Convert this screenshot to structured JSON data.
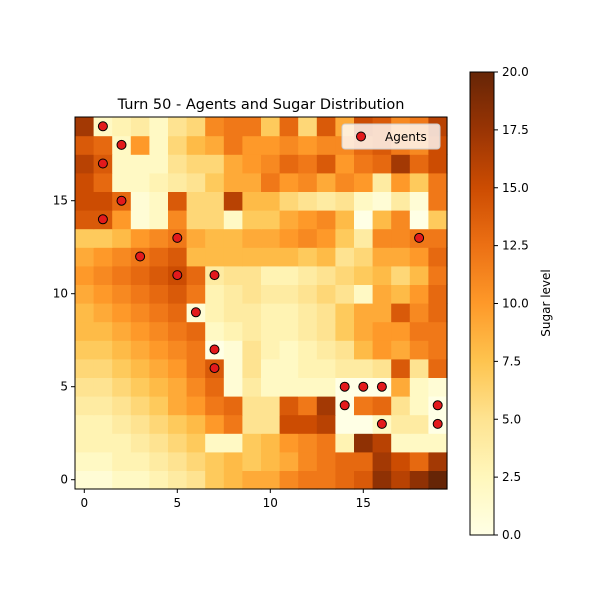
{
  "chart_data": {
    "type": "heatmap",
    "title": "Turn 50 - Agents and Sugar Distribution",
    "xlabel": "",
    "ylabel": "",
    "xlim": [
      -0.5,
      19.5
    ],
    "ylim": [
      -0.5,
      19.5
    ],
    "x_ticks": [
      0,
      5,
      10,
      15
    ],
    "y_ticks": [
      0,
      5,
      10,
      15
    ],
    "colormap": "YlOrBr",
    "colorbar": {
      "label": "Sugar level",
      "min": 0.0,
      "max": 20.0,
      "ticks": [
        "0.0",
        "2.5",
        "5.0",
        "7.5",
        "10.0",
        "12.5",
        "15.0",
        "17.5",
        "20.0"
      ]
    },
    "legend": {
      "position": "top-right",
      "entries": [
        "Agents"
      ]
    },
    "agent_color": "#e31a1c",
    "grid": [
      [
        1,
        1,
        2,
        2,
        3,
        4,
        5,
        7,
        8,
        9,
        9,
        11,
        12,
        12,
        13,
        14,
        18,
        16,
        18,
        20
      ],
      [
        2,
        2,
        3,
        3,
        4,
        5,
        6,
        7,
        8,
        7,
        8,
        9,
        11,
        12,
        13,
        13,
        17,
        15,
        13,
        17
      ],
      [
        3,
        3,
        3,
        4,
        5,
        6,
        7,
        2,
        2,
        7,
        8,
        10,
        11,
        12,
        3,
        18,
        16,
        2,
        2,
        2
      ],
      [
        3,
        3,
        4,
        5,
        6,
        7,
        8,
        10,
        12,
        5,
        5,
        15,
        15,
        16,
        0,
        0,
        2,
        4,
        4,
        0
      ],
      [
        4,
        4,
        5,
        6,
        7,
        9,
        10,
        12,
        13,
        5,
        5,
        14,
        12,
        17,
        0,
        12,
        13,
        5,
        2,
        0
      ],
      [
        5,
        5,
        6,
        7,
        8,
        9,
        11,
        13,
        1,
        4,
        2,
        2,
        2,
        2,
        0,
        0,
        0,
        9,
        2,
        1
      ],
      [
        6,
        6,
        7,
        8,
        9,
        10,
        12,
        14,
        1,
        5,
        2,
        2,
        3,
        3,
        4,
        4,
        5,
        14,
        5,
        13
      ],
      [
        7,
        7,
        8,
        9,
        10,
        11,
        12,
        0,
        1,
        5,
        3,
        2,
        3,
        4,
        5,
        8,
        10,
        9,
        11,
        12
      ],
      [
        8,
        8,
        9,
        10,
        11,
        12,
        13,
        2,
        3,
        4,
        3,
        3,
        4,
        5,
        7,
        9,
        10,
        10,
        12,
        12
      ],
      [
        8,
        9,
        10,
        11,
        12,
        13,
        1,
        3,
        4,
        4,
        3,
        3,
        4,
        5,
        7,
        9,
        9,
        14,
        11,
        13
      ],
      [
        9,
        10,
        11,
        12,
        13,
        14,
        12,
        3,
        4,
        5,
        4,
        4,
        5,
        6,
        5,
        2,
        9,
        8,
        10,
        13
      ],
      [
        10,
        11,
        12,
        13,
        14,
        15,
        13,
        4,
        5,
        5,
        3,
        3,
        4,
        5,
        6,
        7,
        8,
        6,
        8,
        12
      ],
      [
        9,
        10,
        11,
        12,
        13,
        14,
        8,
        8,
        8,
        8,
        8,
        8,
        7,
        8,
        5,
        6,
        9,
        9,
        10,
        13
      ],
      [
        7,
        7,
        8,
        10,
        11,
        12,
        9,
        8,
        8,
        9,
        9,
        10,
        11,
        10,
        7,
        4,
        11,
        11,
        12,
        12
      ],
      [
        14,
        14,
        10,
        1,
        2,
        11,
        6,
        6,
        2,
        7,
        7,
        9,
        10,
        11,
        8,
        0,
        8,
        11,
        0,
        7
      ],
      [
        15,
        15,
        13,
        1,
        2,
        14,
        6,
        6,
        16,
        8,
        8,
        6,
        5,
        4,
        5,
        2,
        1,
        4,
        1,
        12
      ],
      [
        15,
        13,
        2,
        2,
        3,
        4,
        5,
        7,
        9,
        9,
        12,
        10,
        11,
        9,
        11,
        10,
        4,
        10,
        7,
        12
      ],
      [
        16,
        14,
        2,
        2,
        2,
        5,
        6,
        6,
        9,
        10,
        11,
        13,
        12,
        14,
        10,
        12,
        13,
        17,
        13,
        15
      ],
      [
        14,
        13,
        2,
        10,
        2,
        6,
        8,
        9,
        12,
        10,
        10,
        11,
        10,
        11,
        11,
        13,
        14,
        12,
        11,
        15
      ],
      [
        17,
        2,
        3,
        4,
        2,
        5,
        6,
        11,
        12,
        12,
        7,
        13,
        6,
        14,
        9,
        15,
        14,
        11,
        12,
        16
      ]
    ],
    "agents": [
      {
        "x": 1,
        "y": 19
      },
      {
        "x": 2,
        "y": 18
      },
      {
        "x": 1,
        "y": 17
      },
      {
        "x": 2,
        "y": 15
      },
      {
        "x": 1,
        "y": 14
      },
      {
        "x": 5,
        "y": 13
      },
      {
        "x": 3,
        "y": 12
      },
      {
        "x": 18,
        "y": 13
      },
      {
        "x": 5,
        "y": 11
      },
      {
        "x": 7,
        "y": 11
      },
      {
        "x": 6,
        "y": 9
      },
      {
        "x": 7,
        "y": 7
      },
      {
        "x": 7,
        "y": 6
      },
      {
        "x": 14,
        "y": 5
      },
      {
        "x": 15,
        "y": 5
      },
      {
        "x": 16,
        "y": 5
      },
      {
        "x": 14,
        "y": 4
      },
      {
        "x": 16,
        "y": 3
      },
      {
        "x": 19,
        "y": 4
      },
      {
        "x": 19,
        "y": 3
      }
    ]
  }
}
